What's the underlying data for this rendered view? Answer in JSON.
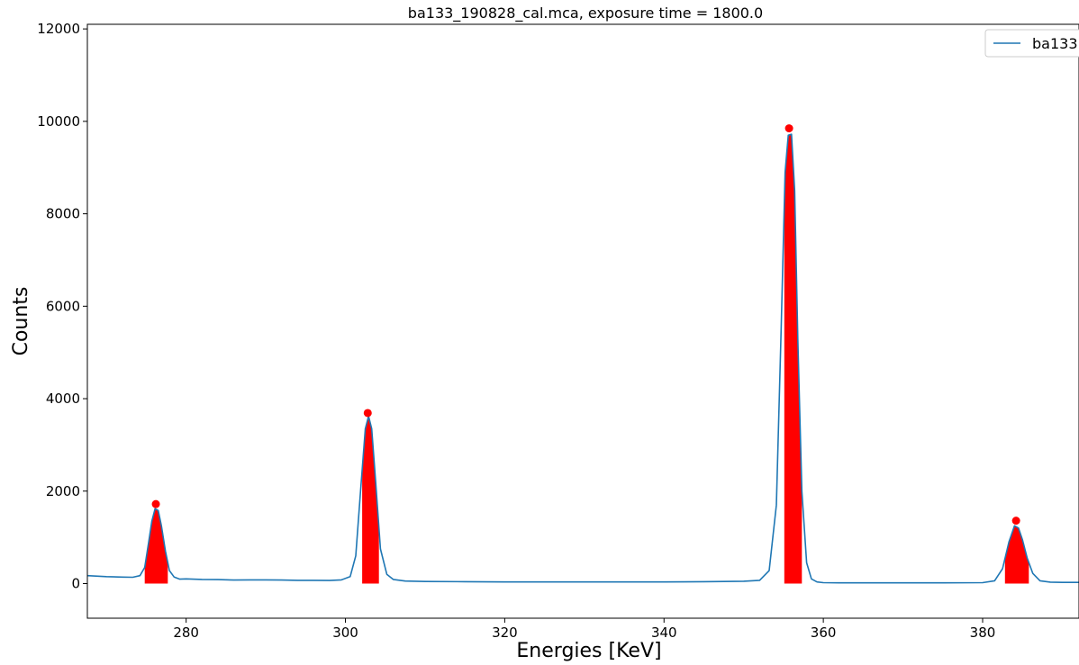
{
  "chart_data": {
    "type": "line",
    "title": "ba133_190828_cal.mca, exposure time = 1800.0",
    "xlabel": "Energies [KeV]",
    "ylabel": "Counts",
    "xlim": [
      267.6,
      392.1
    ],
    "ylim": [
      -750,
      12100
    ],
    "x_ticks": [
      280,
      300,
      320,
      340,
      360,
      380
    ],
    "y_ticks": [
      0,
      2000,
      4000,
      6000,
      8000,
      10000,
      12000
    ],
    "grid": false,
    "legend": {
      "position": "top-right",
      "entries": [
        "ba133"
      ]
    },
    "colors": {
      "line": "#1f77b4",
      "peak": "#ff0000"
    },
    "series": [
      {
        "name": "ba133",
        "x": [
          267.6,
          270,
          272,
          273.3,
          274.2,
          274.8,
          275.3,
          275.7,
          276.1,
          276.5,
          276.9,
          277.4,
          277.9,
          278.5,
          279.2,
          280,
          282,
          284,
          286,
          288,
          290,
          292,
          294,
          296,
          298,
          299.5,
          300.6,
          301.3,
          301.9,
          302.5,
          302.9,
          303.3,
          303.8,
          304.4,
          305.2,
          306,
          307.5,
          310,
          315,
          320,
          325,
          330,
          335,
          340,
          345,
          350,
          352,
          353.2,
          354.1,
          354.7,
          355.2,
          355.6,
          356.0,
          356.4,
          356.8,
          357.3,
          357.9,
          358.5,
          359.2,
          360,
          362,
          365,
          370,
          375,
          380,
          381.5,
          382.5,
          383.3,
          384.0,
          384.5,
          385.0,
          385.6,
          386.3,
          387.2,
          388.5,
          390,
          392.1
        ],
        "y": [
          170,
          150,
          140,
          135,
          170,
          350,
          900,
          1350,
          1620,
          1580,
          1250,
          700,
          280,
          140,
          95,
          100,
          90,
          85,
          75,
          80,
          80,
          75,
          70,
          70,
          65,
          80,
          150,
          600,
          2000,
          3350,
          3620,
          3350,
          2200,
          750,
          200,
          90,
          55,
          45,
          40,
          35,
          35,
          35,
          35,
          35,
          40,
          50,
          70,
          280,
          1700,
          5500,
          8900,
          9700,
          9720,
          8500,
          5300,
          2000,
          450,
          100,
          35,
          20,
          15,
          15,
          15,
          15,
          20,
          60,
          320,
          900,
          1250,
          1200,
          950,
          550,
          220,
          60,
          30,
          25,
          25
        ]
      }
    ],
    "peaks": [
      {
        "x": 276.2,
        "y": 1720,
        "band": [
          274.8,
          277.7
        ]
      },
      {
        "x": 302.8,
        "y": 3690,
        "band": [
          302.1,
          304.2
        ]
      },
      {
        "x": 355.7,
        "y": 9850,
        "band": [
          355.1,
          357.3
        ]
      },
      {
        "x": 384.2,
        "y": 1360,
        "band": [
          382.8,
          385.8
        ]
      }
    ]
  }
}
